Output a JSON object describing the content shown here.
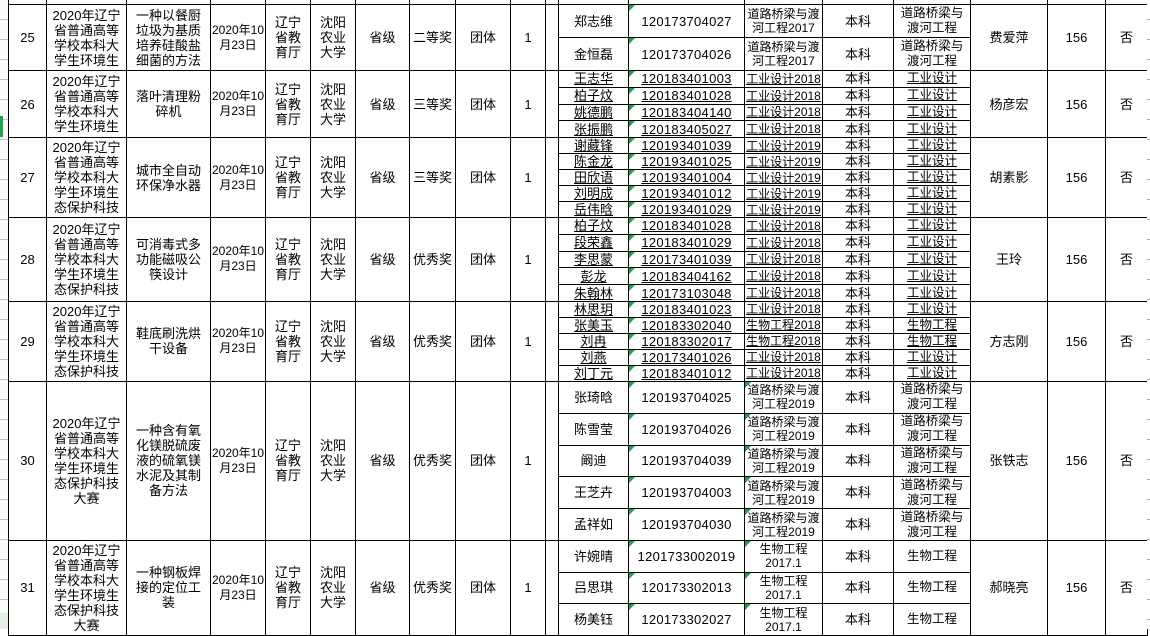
{
  "colors": {
    "table_border": "#000000",
    "gridline": "#b9c9d4",
    "warning_triangle": "#1e9e4c",
    "selection_marker": "#22a24f"
  },
  "rows": [
    {
      "no": "25",
      "competition": "2020年辽宁\n省普通高等\n学校本科大\n学生环境生",
      "project": "一种以餐厨\n垃圾为基质\n培养硅酸盐\n细菌的方法",
      "date": "2020年10\n月23日",
      "organizer": "辽宁\n省教\n育厅",
      "school": "沈阳\n农业\n大学",
      "level": "省级",
      "award": "二等奖",
      "type": "团体",
      "count": "1",
      "teacher": "费爱萍",
      "num": "156",
      "flag": "否",
      "underline": false,
      "major_flagged": false,
      "students": [
        {
          "name": "郑志维",
          "id": "120173704027",
          "major": "道路桥梁与渡\n河工程2017",
          "degree": "本科",
          "major2": "道路桥梁与\n渡河工程"
        },
        {
          "name": "金恒磊",
          "id": "120173704026",
          "major": "道路桥梁与渡\n河工程2017",
          "degree": "本科",
          "major2": "道路桥梁与\n渡河工程"
        }
      ]
    },
    {
      "no": "26",
      "competition": "2020年辽宁\n省普通高等\n学校本科大\n学生环境生",
      "project": "落叶清理粉\n碎机",
      "date": "2020年10\n月23日",
      "organizer": "辽宁\n省教\n育厅",
      "school": "沈阳\n农业\n大学",
      "level": "省级",
      "award": "三等奖",
      "type": "团体",
      "count": "1",
      "teacher": "杨彦宏",
      "num": "156",
      "flag": "否",
      "underline": true,
      "major_flagged": false,
      "students": [
        {
          "name": "王志华",
          "id": "120183401003",
          "major": "工业设计2018",
          "degree": "本科",
          "major2": "工业设计"
        },
        {
          "name": "柏子炆",
          "id": "120183401028",
          "major": "工业设计2018",
          "degree": "本科",
          "major2": "工业设计"
        },
        {
          "name": "姚德鹏",
          "id": "120183404140",
          "major": "工业设计2018",
          "degree": "本科",
          "major2": "工业设计"
        },
        {
          "name": "张振鹏",
          "id": "120183405027",
          "major": "工业设计2018",
          "degree": "本科",
          "major2": "工业设计"
        }
      ]
    },
    {
      "no": "27",
      "competition": "2020年辽宁\n省普通高等\n学校本科大\n学生环境生\n态保护科技",
      "project": "城市全自动\n环保净水器",
      "date": "2020年10\n月23日",
      "organizer": "辽宁\n省教\n育厅",
      "school": "沈阳\n农业\n大学",
      "level": "省级",
      "award": "三等奖",
      "type": "团体",
      "count": "1",
      "teacher": "胡素影",
      "num": "156",
      "flag": "否",
      "underline": true,
      "major_flagged": false,
      "students": [
        {
          "name": "谢藏锋",
          "id": "120193401039",
          "major": "工业设计2019",
          "degree": "本科",
          "major2": "工业设计"
        },
        {
          "name": "陈金龙",
          "id": "120193401025",
          "major": "工业设计2019",
          "degree": "本科",
          "major2": "工业设计"
        },
        {
          "name": "田欣语",
          "id": "120193401004",
          "major": "工业设计2019",
          "degree": "本科",
          "major2": "工业设计"
        },
        {
          "name": "刘明成",
          "id": "120193401012",
          "major": "工业设计2019",
          "degree": "本科",
          "major2": "工业设计"
        },
        {
          "name": "岳伟晗",
          "id": "120193401029",
          "major": "工业设计2019",
          "degree": "本科",
          "major2": "工业设计"
        }
      ]
    },
    {
      "no": "28",
      "competition": "2020年辽宁\n省普通高等\n学校本科大\n学生环境生\n态保护科技",
      "project": "可消毒式多\n功能磁吸公\n筷设计",
      "date": "2020年10\n月23日",
      "organizer": "辽宁\n省教\n育厅",
      "school": "沈阳\n农业\n大学",
      "level": "省级",
      "award": "优秀奖",
      "type": "团体",
      "count": "1",
      "teacher": "王玲",
      "num": "156",
      "flag": "否",
      "underline": true,
      "major_flagged": false,
      "students": [
        {
          "name": "柏子炆",
          "id": "120183401028",
          "major": "工业设计2018",
          "degree": "本科",
          "major2": "工业设计"
        },
        {
          "name": "段荣鑫",
          "id": "120183401029",
          "major": "工业设计2018",
          "degree": "本科",
          "major2": "工业设计"
        },
        {
          "name": "李思蒙",
          "id": "120173401039",
          "major": "工业设计2018",
          "degree": "本科",
          "major2": "工业设计"
        },
        {
          "name": "彭龙",
          "id": "120183404162",
          "major": "工业设计2018",
          "degree": "本科",
          "major2": "工业设计"
        },
        {
          "name": "朱翰林",
          "id": "120173103048",
          "major": "工业设计2018",
          "degree": "本科",
          "major2": "工业设计"
        }
      ]
    },
    {
      "no": "29",
      "competition": "2020年辽宁\n省普通高等\n学校本科大\n学生环境生\n态保护科技",
      "project": "鞋底刷洗烘\n干设备",
      "date": "2020年10\n月23日",
      "organizer": "辽宁\n省教\n育厅",
      "school": "沈阳\n农业\n大学",
      "level": "省级",
      "award": "优秀奖",
      "type": "团体",
      "count": "1",
      "teacher": "方志刚",
      "num": "156",
      "flag": "否",
      "underline": true,
      "major_flagged": false,
      "students": [
        {
          "name": "林思玥",
          "id": "120183401023",
          "major": "工业设计2018",
          "degree": "本科",
          "major2": "工业设计"
        },
        {
          "name": "张美玉",
          "id": "120183302040",
          "major": "生物工程2018",
          "degree": "本科",
          "major2": "生物工程"
        },
        {
          "name": "刘冉",
          "id": "120183302017",
          "major": "生物工程2018",
          "degree": "本科",
          "major2": "生物工程"
        },
        {
          "name": "刘燕",
          "id": "120173401026",
          "major": "工业设计2018",
          "degree": "本科",
          "major2": "工业设计"
        },
        {
          "name": "刘丁元",
          "id": "120183401012",
          "major": "工业设计2018",
          "degree": "本科",
          "major2": "工业设计"
        }
      ]
    },
    {
      "no": "30",
      "competition": "2020年辽宁\n省普通高等\n学校本科大\n学生环境生\n态保护科技\n大赛",
      "project": "一种含有氧\n化镁脱硫废\n液的硫氧镁\n水泥及其制\n备方法",
      "date": "2020年10\n月23日",
      "organizer": "辽宁\n省教\n育厅",
      "school": "沈阳\n农业\n大学",
      "level": "省级",
      "award": "优秀奖",
      "type": "团体",
      "count": "1",
      "teacher": "张铁志",
      "num": "156",
      "flag": "否",
      "underline": false,
      "major_flagged": true,
      "students": [
        {
          "name": "张琦晗",
          "id": "120193704025",
          "major": "道路桥梁与渡\n河工程2019",
          "degree": "本科",
          "major2": "道路桥梁与\n渡河工程"
        },
        {
          "name": "陈雪莹",
          "id": "120193704026",
          "major": "道路桥梁与渡\n河工程2019",
          "degree": "本科",
          "major2": "道路桥梁与\n渡河工程"
        },
        {
          "name": "阚迪",
          "id": "120193704039",
          "major": "道路桥梁与渡\n河工程2019",
          "degree": "本科",
          "major2": "道路桥梁与\n渡河工程"
        },
        {
          "name": "王芝卉",
          "id": "120193704003",
          "major": "道路桥梁与渡\n河工程2019",
          "degree": "本科",
          "major2": "道路桥梁与\n渡河工程"
        },
        {
          "name": "孟祥如",
          "id": "120193704030",
          "major": "道路桥梁与渡\n河工程2019",
          "degree": "本科",
          "major2": "道路桥梁与\n渡河工程"
        }
      ]
    },
    {
      "no": "31",
      "competition": "2020年辽宁\n省普通高等\n学校本科大\n学生环境生\n态保护科技\n大赛",
      "project": "一种钢板焊\n接的定位工\n装",
      "date": "2020年10\n月23日",
      "organizer": "辽宁\n省教\n育厅",
      "school": "沈阳\n农业\n大学",
      "level": "省级",
      "award": "优秀奖",
      "type": "团体",
      "count": "1",
      "teacher": "郝晓亮",
      "num": "156",
      "flag": "否",
      "underline": false,
      "major_flagged": true,
      "students": [
        {
          "name": "许婉晴",
          "id": "1201733002019",
          "major": "生物工程\n2017.1",
          "degree": "本科",
          "major2": "生物工程"
        },
        {
          "name": "吕思琪",
          "id": "120173302013",
          "major": "生物工程\n2017.1",
          "degree": "本科",
          "major2": "生物工程"
        },
        {
          "name": "杨美钰",
          "id": "120173302027",
          "major": "生物工程\n2017.1",
          "degree": "本科",
          "major2": "生物工程"
        }
      ]
    }
  ]
}
